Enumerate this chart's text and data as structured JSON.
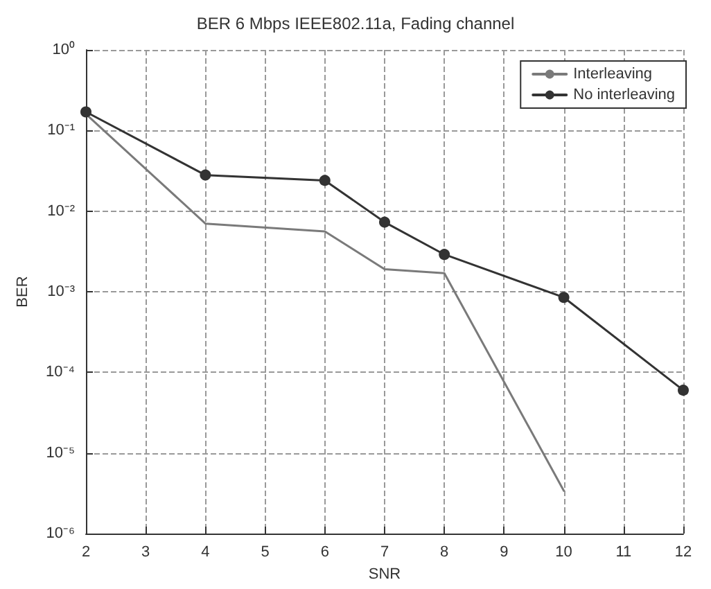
{
  "chart_data": {
    "type": "line",
    "title": "BER 6 Mbps IEEE802.11a, Fading channel",
    "xlabel": "SNR",
    "ylabel": "BER",
    "series": [
      {
        "name": "Interleaving",
        "color": "#7a7a7a",
        "marker": "none",
        "x": [
          2,
          4,
          6,
          7,
          8,
          10
        ],
        "values": [
          0.16,
          0.007,
          0.0056,
          0.0019,
          0.0017,
          3.4e-06
        ]
      },
      {
        "name": "No interleaving",
        "color": "#333333",
        "marker": "circle",
        "x": [
          2,
          4,
          6,
          7,
          8,
          10,
          12
        ],
        "values": [
          0.17,
          0.028,
          0.024,
          0.0073,
          0.0029,
          0.00085,
          6e-05
        ]
      }
    ],
    "log": "y",
    "xlim": [
      2,
      12
    ],
    "xticks": [
      2,
      3,
      4,
      5,
      6,
      7,
      8,
      9,
      10,
      11,
      12
    ],
    "ylim": [
      1e-06,
      1
    ],
    "yticks": [
      {
        "value": 1e-06,
        "label": "10⁻⁶"
      },
      {
        "value": 1e-05,
        "label": "10⁻⁵"
      },
      {
        "value": 0.0001,
        "label": "10⁻⁴"
      },
      {
        "value": 0.001,
        "label": "10⁻³"
      },
      {
        "value": 0.01,
        "label": "10⁻²"
      },
      {
        "value": 0.1,
        "label": "10⁻¹"
      },
      {
        "value": 1,
        "label": "10⁰"
      }
    ],
    "grid": true,
    "legend": "top right",
    "line_style": "solid"
  }
}
